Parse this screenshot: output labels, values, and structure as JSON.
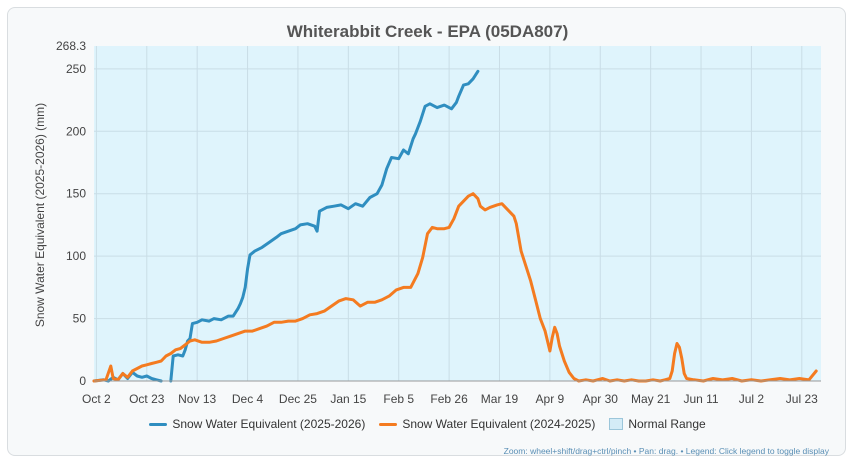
{
  "chart_data": {
    "type": "line",
    "title": "Whiterabbit Creek - EPA (05DA807)",
    "ylabel": "Snow Water Equivalent (2025-2026) (mm)",
    "xlabel": "",
    "ylim": [
      0,
      268.3
    ],
    "ytick_top_label": "268.3",
    "yticks": [
      "0",
      "50",
      "100",
      "150",
      "200",
      "250"
    ],
    "x_axis_start": "Oct 1",
    "x_axis_end": "Jul 31",
    "xticks": [
      {
        "day": 1,
        "label": "Oct 2"
      },
      {
        "day": 22,
        "label": "Oct 23"
      },
      {
        "day": 43,
        "label": "Nov 13"
      },
      {
        "day": 64,
        "label": "Dec 4"
      },
      {
        "day": 85,
        "label": "Dec 25"
      },
      {
        "day": 106,
        "label": "Jan 15"
      },
      {
        "day": 127,
        "label": "Feb 5"
      },
      {
        "day": 148,
        "label": "Feb 26"
      },
      {
        "day": 169,
        "label": "Mar 19"
      },
      {
        "day": 190,
        "label": "Apr 9"
      },
      {
        "day": 211,
        "label": "Apr 30"
      },
      {
        "day": 232,
        "label": "May 21"
      },
      {
        "day": 253,
        "label": "Jun 11"
      },
      {
        "day": 274,
        "label": "Jul 2"
      },
      {
        "day": 295,
        "label": "Jul 23"
      }
    ],
    "grid": true,
    "legend_placement": "bottom",
    "series": [
      {
        "name": "Snow Water Equivalent (2025-2026)",
        "color": "#2f8ec0",
        "points": [
          [
            0,
            0
          ],
          [
            2,
            0.5
          ],
          [
            4,
            1
          ],
          [
            6,
            0
          ],
          [
            8,
            3
          ],
          [
            10,
            1
          ],
          [
            12,
            6
          ],
          [
            14,
            2
          ],
          [
            16,
            7
          ],
          [
            18,
            4
          ],
          [
            20,
            3
          ],
          [
            22,
            4
          ],
          [
            24,
            2
          ],
          [
            26,
            1
          ],
          [
            28,
            0
          ],
          [
            30,
            null
          ],
          [
            31,
            null
          ],
          [
            32,
            0
          ],
          [
            33,
            20
          ],
          [
            35,
            21
          ],
          [
            37,
            20
          ],
          [
            38,
            25
          ],
          [
            39,
            32
          ],
          [
            40,
            34
          ],
          [
            41,
            46
          ],
          [
            43,
            47
          ],
          [
            45,
            49
          ],
          [
            48,
            48
          ],
          [
            50,
            50
          ],
          [
            53,
            49
          ],
          [
            56,
            52
          ],
          [
            58,
            52
          ],
          [
            60,
            58
          ],
          [
            61,
            62
          ],
          [
            62,
            67
          ],
          [
            63,
            75
          ],
          [
            64,
            90
          ],
          [
            65,
            101
          ],
          [
            67,
            104
          ],
          [
            70,
            107
          ],
          [
            73,
            111
          ],
          [
            76,
            115
          ],
          [
            78,
            118
          ],
          [
            81,
            120
          ],
          [
            84,
            122
          ],
          [
            86,
            125
          ],
          [
            89,
            126
          ],
          [
            92,
            124
          ],
          [
            93,
            120
          ],
          [
            94,
            136
          ],
          [
            97,
            139
          ],
          [
            100,
            140
          ],
          [
            103,
            141
          ],
          [
            106,
            138
          ],
          [
            109,
            142
          ],
          [
            112,
            140
          ],
          [
            115,
            147
          ],
          [
            118,
            150
          ],
          [
            120,
            157
          ],
          [
            122,
            170
          ],
          [
            124,
            179
          ],
          [
            127,
            178
          ],
          [
            129,
            185
          ],
          [
            131,
            182
          ],
          [
            133,
            194
          ],
          [
            134,
            198
          ],
          [
            136,
            208
          ],
          [
            138,
            220
          ],
          [
            140,
            222
          ],
          [
            143,
            219
          ],
          [
            146,
            221
          ],
          [
            149,
            218
          ],
          [
            151,
            223
          ],
          [
            152,
            228
          ],
          [
            154,
            237
          ],
          [
            156,
            238
          ],
          [
            158,
            242
          ],
          [
            159,
            245
          ],
          [
            160,
            248
          ]
        ]
      },
      {
        "name": "Snow Water Equivalent (2024-2025)",
        "color": "#f47b20",
        "points": [
          [
            0,
            0
          ],
          [
            5,
            1
          ],
          [
            7,
            12
          ],
          [
            8,
            2
          ],
          [
            10,
            1
          ],
          [
            12,
            6
          ],
          [
            14,
            3
          ],
          [
            16,
            8
          ],
          [
            18,
            10
          ],
          [
            20,
            12
          ],
          [
            22,
            13
          ],
          [
            24,
            14
          ],
          [
            26,
            15
          ],
          [
            28,
            16
          ],
          [
            30,
            20
          ],
          [
            32,
            22
          ],
          [
            34,
            25
          ],
          [
            36,
            26
          ],
          [
            38,
            29
          ],
          [
            40,
            32
          ],
          [
            42,
            33
          ],
          [
            45,
            31
          ],
          [
            48,
            31
          ],
          [
            51,
            32
          ],
          [
            54,
            34
          ],
          [
            57,
            36
          ],
          [
            60,
            38
          ],
          [
            63,
            40
          ],
          [
            66,
            40
          ],
          [
            69,
            42
          ],
          [
            72,
            44
          ],
          [
            75,
            47
          ],
          [
            78,
            47
          ],
          [
            81,
            48
          ],
          [
            84,
            48
          ],
          [
            87,
            50
          ],
          [
            90,
            53
          ],
          [
            93,
            54
          ],
          [
            96,
            56
          ],
          [
            99,
            60
          ],
          [
            102,
            64
          ],
          [
            105,
            66
          ],
          [
            108,
            65
          ],
          [
            111,
            60
          ],
          [
            114,
            63
          ],
          [
            117,
            63
          ],
          [
            120,
            65
          ],
          [
            123,
            68
          ],
          [
            126,
            73
          ],
          [
            129,
            75
          ],
          [
            132,
            75
          ],
          [
            135,
            86
          ],
          [
            137,
            99
          ],
          [
            139,
            118
          ],
          [
            141,
            123
          ],
          [
            143,
            122
          ],
          [
            146,
            122
          ],
          [
            148,
            123
          ],
          [
            150,
            130
          ],
          [
            152,
            140
          ],
          [
            154,
            144
          ],
          [
            156,
            148
          ],
          [
            158,
            150
          ],
          [
            160,
            146
          ],
          [
            161,
            140
          ],
          [
            163,
            137
          ],
          [
            165,
            139
          ],
          [
            168,
            141
          ],
          [
            170,
            142
          ],
          [
            172,
            138
          ],
          [
            174,
            134
          ],
          [
            175,
            132
          ],
          [
            176,
            126
          ],
          [
            177,
            115
          ],
          [
            178,
            104
          ],
          [
            180,
            92
          ],
          [
            182,
            80
          ],
          [
            184,
            65
          ],
          [
            186,
            50
          ],
          [
            188,
            40
          ],
          [
            189,
            32
          ],
          [
            190,
            24
          ],
          [
            191,
            35
          ],
          [
            192,
            43
          ],
          [
            193,
            38
          ],
          [
            194,
            28
          ],
          [
            196,
            16
          ],
          [
            198,
            7
          ],
          [
            200,
            2
          ],
          [
            202,
            0
          ],
          [
            205,
            1
          ],
          [
            208,
            0
          ],
          [
            212,
            2
          ],
          [
            215,
            0
          ],
          [
            218,
            1
          ],
          [
            221,
            0
          ],
          [
            224,
            1
          ],
          [
            227,
            0
          ],
          [
            230,
            0
          ],
          [
            233,
            1
          ],
          [
            236,
            0
          ],
          [
            238,
            1
          ],
          [
            240,
            2
          ],
          [
            241,
            8
          ],
          [
            242,
            22
          ],
          [
            243,
            30
          ],
          [
            244,
            27
          ],
          [
            245,
            18
          ],
          [
            246,
            6
          ],
          [
            247,
            2
          ],
          [
            250,
            1
          ],
          [
            254,
            0
          ],
          [
            258,
            2
          ],
          [
            262,
            1
          ],
          [
            266,
            2
          ],
          [
            270,
            0
          ],
          [
            274,
            1
          ],
          [
            278,
            0
          ],
          [
            282,
            1
          ],
          [
            286,
            2
          ],
          [
            290,
            1
          ],
          [
            294,
            2
          ],
          [
            298,
            1
          ],
          [
            301,
            8
          ]
        ]
      },
      {
        "name": "Normal Range",
        "color": "#d4ecf7",
        "points": []
      }
    ]
  },
  "hint_text": "Zoom: wheel+shift/drag+ctrl/pinch • Pan: drag. • Legend: Click legend to toggle display"
}
